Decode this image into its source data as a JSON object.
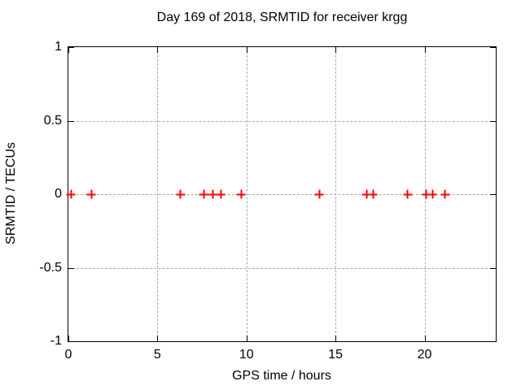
{
  "chart_data": {
    "type": "scatter",
    "title": "Day 169 of 2018, SRMTID for receiver krgg",
    "xlabel": "GPS time / hours",
    "ylabel": "SRMTID / TECUs",
    "xlim": [
      0,
      24
    ],
    "ylim": [
      -1,
      1
    ],
    "xticks": {
      "values": [
        0,
        5,
        10,
        15,
        20
      ],
      "labels": [
        "0",
        "5",
        "10",
        "15",
        "20"
      ]
    },
    "yticks": {
      "values": [
        -1,
        -0.5,
        0,
        0.5,
        1
      ],
      "labels": [
        "-1",
        "-0.5",
        "0",
        "0.5",
        "1"
      ]
    },
    "grid": true,
    "legend_position": "none",
    "series": [
      {
        "name": "SRMTID",
        "marker": "plus",
        "color": "#ff0000",
        "x": [
          0.15,
          1.3,
          6.3,
          7.6,
          8.1,
          8.55,
          9.7,
          14.1,
          16.75,
          17.1,
          19.05,
          20.1,
          20.45,
          21.15
        ],
        "y": [
          0,
          0,
          0,
          0,
          0,
          0,
          0,
          0,
          0,
          0,
          0,
          0,
          0,
          0
        ]
      }
    ],
    "colors": {
      "background": "#ffffff",
      "border": "#000000",
      "grid": "#a8a8a8",
      "text": "#000000",
      "marker": "#ff0000"
    }
  }
}
